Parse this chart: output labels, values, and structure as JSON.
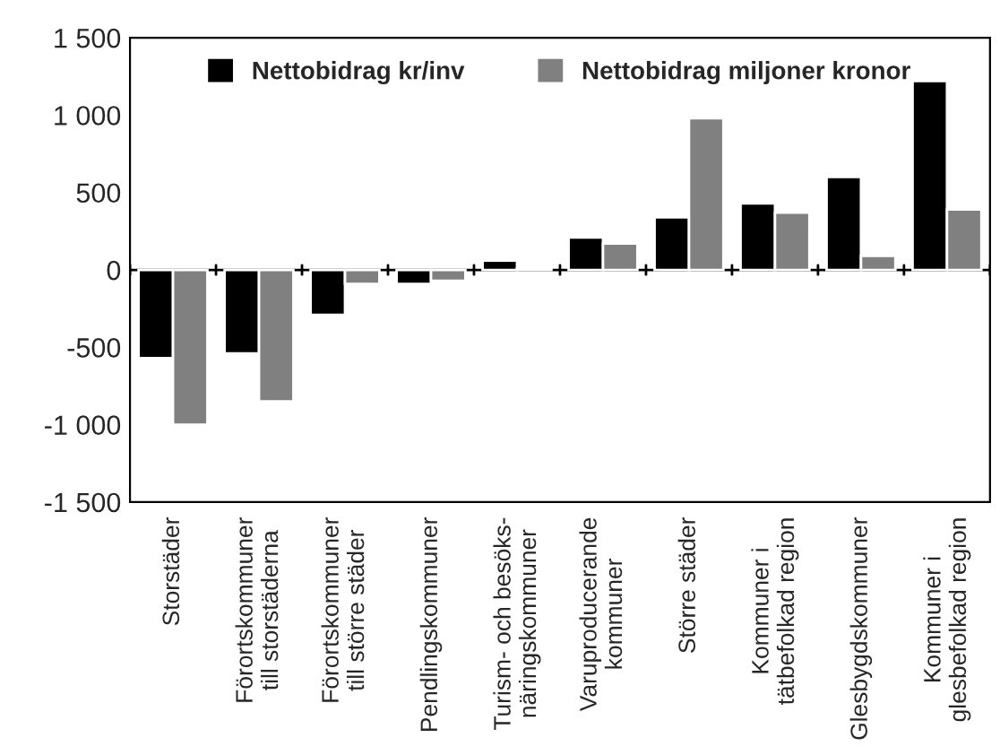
{
  "chart_data": {
    "type": "bar",
    "categories": [
      "Storstäder",
      "Förortskommuner\ntill storstäderna",
      "Förortskommuner\ntill större städer",
      "Pendlingskommuner",
      "Turism- och besöks-\nnäringskommuner",
      "Varuproducerande\nkommuner",
      "Större städer",
      "Kommuner i\ntätbefolkad region",
      "Glesbygdskommuner",
      "Kommuner i\nglesbefolkad region"
    ],
    "series": [
      {
        "name": "Nettobidrag kr/inv",
        "color": "#000000",
        "values": [
          -570,
          -540,
          -290,
          -90,
          60,
          210,
          340,
          430,
          600,
          1220
        ]
      },
      {
        "name": "Nettobidrag miljoner kronor",
        "color": "#808080",
        "values": [
          -1000,
          -850,
          -90,
          -70,
          10,
          170,
          980,
          370,
          90,
          390
        ]
      }
    ],
    "ylim": [
      -1500,
      1500
    ],
    "yticks": [
      {
        "value": -1500,
        "label": "-1 500"
      },
      {
        "value": -1000,
        "label": "-1 000"
      },
      {
        "value": -500,
        "label": "-500"
      },
      0,
      500,
      {
        "value": 1000,
        "label": "1 000"
      },
      {
        "value": 1500,
        "label": "1 500"
      }
    ],
    "legend": "top"
  }
}
